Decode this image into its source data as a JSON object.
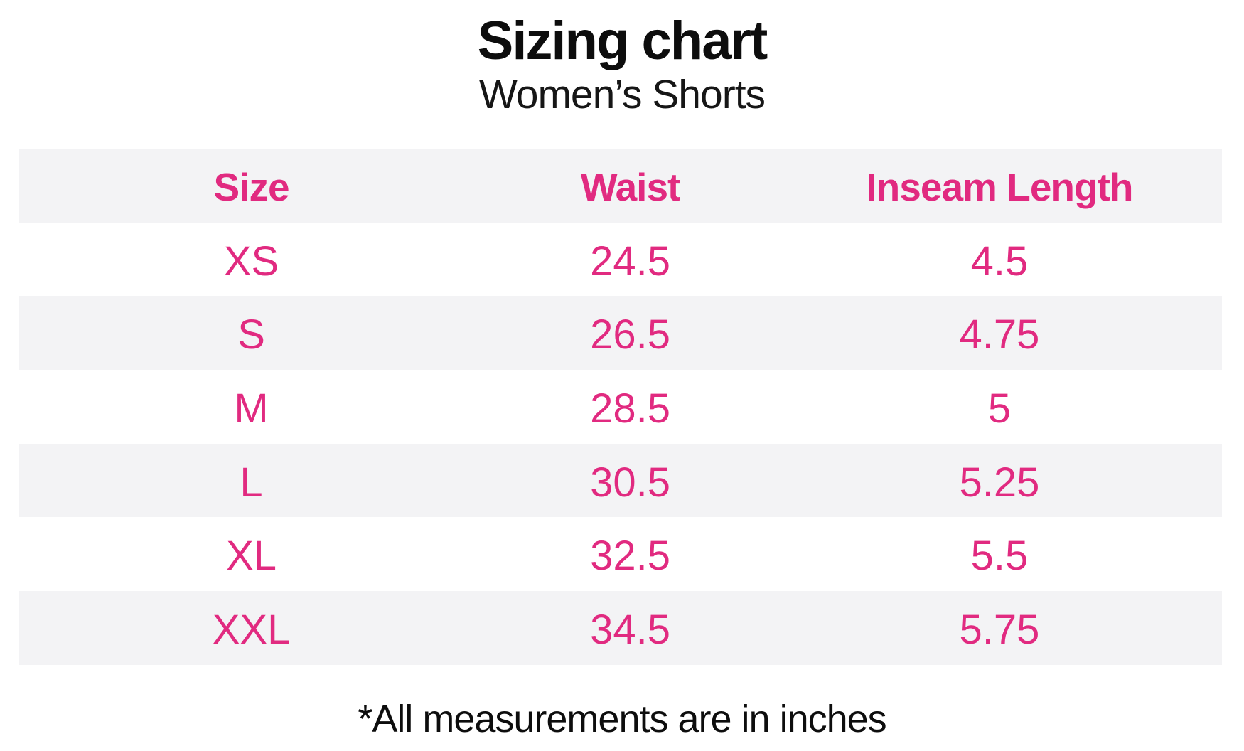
{
  "header": {
    "title": "Sizing chart",
    "subtitle": "Women’s Shorts"
  },
  "table": {
    "columns": [
      "Size",
      "Waist",
      "Inseam Length"
    ],
    "rows": [
      {
        "size": "XS",
        "waist": "24.5",
        "inseam": "4.5"
      },
      {
        "size": "S",
        "waist": "26.5",
        "inseam": "4.75"
      },
      {
        "size": "M",
        "waist": "28.5",
        "inseam": "5"
      },
      {
        "size": "L",
        "waist": "30.5",
        "inseam": "5.25"
      },
      {
        "size": "XL",
        "waist": "32.5",
        "inseam": "5.5"
      },
      {
        "size": "XXL",
        "waist": "34.5",
        "inseam": "5.75"
      }
    ]
  },
  "footnote": "*All measurements are in inches",
  "colors": {
    "accent_pink": "#e12a80",
    "stripe_gray": "#f3f3f5",
    "text_black": "#0d0d0d"
  },
  "chart_data": {
    "type": "table",
    "title": "Sizing chart",
    "subtitle": "Women’s Shorts",
    "columns": [
      "Size",
      "Waist",
      "Inseam Length"
    ],
    "rows": [
      [
        "XS",
        24.5,
        4.5
      ],
      [
        "S",
        26.5,
        4.75
      ],
      [
        "M",
        28.5,
        5
      ],
      [
        "L",
        30.5,
        5.25
      ],
      [
        "XL",
        32.5,
        5.5
      ],
      [
        "XXL",
        34.5,
        5.75
      ]
    ],
    "footnote": "*All measurements are in inches",
    "units": "inches",
    "layout_hints": {
      "striped_rows": true,
      "header_text_color": "#e12a80",
      "value_text_color": "#e12a80",
      "stripe_color": "#f3f3f5"
    }
  }
}
